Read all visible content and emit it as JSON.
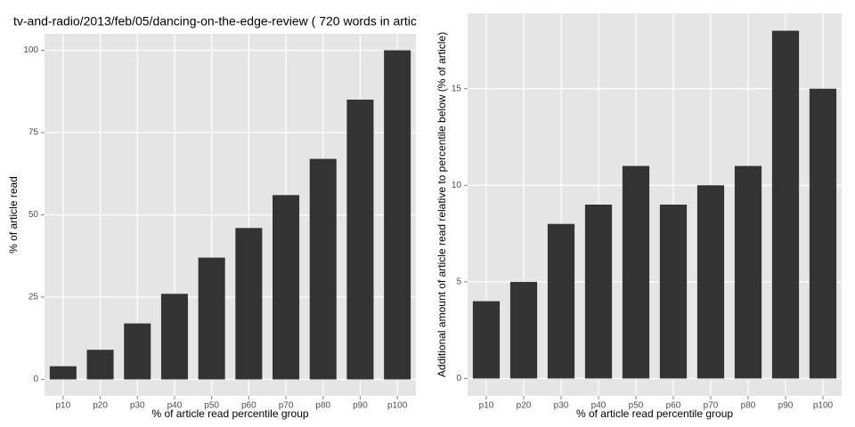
{
  "chart_data": [
    {
      "type": "bar",
      "title": "tv-and-radio/2013/feb/05/dancing-on-the-edge-review ( 720 words in artic",
      "x_label": "% of article read percentile group",
      "y_label": "% of article read",
      "categories": [
        "p10",
        "p20",
        "p30",
        "p40",
        "p50",
        "p60",
        "p70",
        "p80",
        "p90",
        "p100"
      ],
      "values": [
        4,
        9,
        17,
        26,
        37,
        46,
        56,
        67,
        85,
        100
      ],
      "color": "#333333",
      "ylim": [
        -5,
        105
      ],
      "yticks": [
        0,
        25,
        50,
        75,
        100
      ],
      "grid": true
    },
    {
      "type": "bar",
      "x_label": "% of article read percentile group",
      "y_label": "Additional amount of article read relative to percentile below (% of article)",
      "categories": [
        "p10",
        "p20",
        "p30",
        "p40",
        "p50",
        "p60",
        "p70",
        "p80",
        "p90",
        "p100"
      ],
      "values": [
        4,
        5,
        8,
        9,
        11,
        9,
        10,
        11,
        18,
        15
      ],
      "color": "#333333",
      "ylim": [
        -0.9,
        18.9
      ],
      "yticks": [
        0,
        5,
        10,
        15
      ],
      "grid": true
    }
  ]
}
